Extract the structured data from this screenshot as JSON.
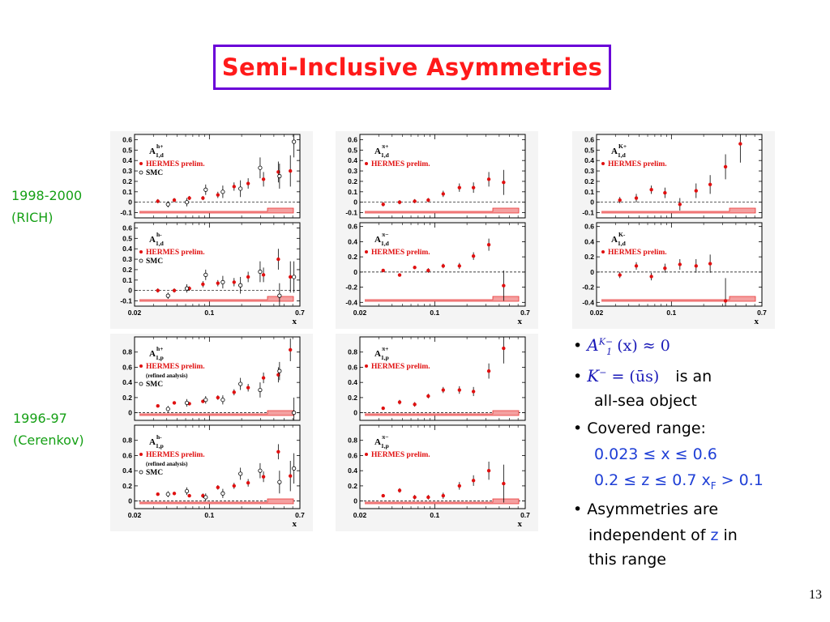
{
  "slide": {
    "title": "Semi-Inclusive Asymmetries",
    "label_1998": "1998-2000",
    "label_rich": "(RICH)",
    "label_1996": "1996-97",
    "label_cerenkov": "(Cerenkov)",
    "page_number": "13"
  },
  "bullets": {
    "b1_math": "A",
    "b1_sup": "K",
    "b1_sup2": "−",
    "b1_sub": "1",
    "b1_rest": "(x) ≈ 0",
    "b2_math": "K",
    "b2_sup": "−",
    "b2_eq": " = (ūs)",
    "b2_text": "is an",
    "b2_text2": "all-sea object",
    "b3_text": "Covered range:",
    "b3_r1": "0.023 ≤ x ≤ 0.6",
    "b3_r2": "0.2 ≤ z ≤ 0.7 x",
    "b3_r2_sub": "F",
    "b3_r2_end": " > 0.1",
    "b4_l1": "Asymmetries are",
    "b4_l2a": "independent of ",
    "b4_l2b": "z",
    "b4_l2c": " in",
    "b4_l3": "this range"
  },
  "colors": {
    "hermes": "#e01010",
    "syst": "#e83030",
    "title_border": "#6a00d8",
    "green": "#16a016"
  },
  "chart_data": [
    {
      "id": "A1d-hplus",
      "type": "scatter",
      "label_main": "A",
      "label_sup": "h+",
      "label_sub": "1,d",
      "ylim": [
        -0.15,
        0.65
      ],
      "yticks": [
        -0.1,
        0,
        0.1,
        0.2,
        0.3,
        0.4,
        0.5,
        0.6
      ],
      "xlim": [
        0.02,
        0.7
      ],
      "xticks": [
        "0.02",
        "0.1",
        "0.7"
      ],
      "xlabel": "x",
      "legend": [
        "HERMES prelim.",
        "SMC"
      ],
      "legend_sub": "",
      "series": [
        {
          "name": "HERMES prelim.",
          "x": [
            0.033,
            0.047,
            0.065,
            0.087,
            0.12,
            0.17,
            0.23,
            0.32,
            0.44,
            0.57
          ],
          "y": [
            0.01,
            0.02,
            0.04,
            0.04,
            0.07,
            0.15,
            0.18,
            0.22,
            0.29,
            0.3
          ],
          "err": [
            0.02,
            0.02,
            0.02,
            0.02,
            0.03,
            0.04,
            0.05,
            0.07,
            0.1,
            0.15
          ]
        },
        {
          "name": "SMC",
          "x": [
            0.04,
            0.06,
            0.09,
            0.13,
            0.19,
            0.29,
            0.44,
            0.6
          ],
          "y": [
            -0.02,
            0.0,
            0.12,
            0.1,
            0.13,
            0.33,
            0.25,
            0.58
          ],
          "err": [
            0.03,
            0.04,
            0.05,
            0.06,
            0.08,
            0.1,
            0.12,
            0.15
          ]
        }
      ]
    },
    {
      "id": "A1d-hminus",
      "type": "scatter",
      "label_main": "A",
      "label_sup": "h-",
      "label_sub": "1,d",
      "ylim": [
        -0.15,
        0.65
      ],
      "yticks": [
        -0.1,
        0,
        0.1,
        0.2,
        0.3,
        0.4,
        0.5,
        0.6
      ],
      "xlim": [
        0.02,
        0.7
      ],
      "xticks": [
        "0.02",
        "0.1",
        "0.7"
      ],
      "xlabel": "x",
      "legend": [
        "HERMES prelim.",
        "SMC"
      ],
      "legend_sub": "",
      "series": [
        {
          "name": "HERMES prelim.",
          "x": [
            0.033,
            0.047,
            0.065,
            0.087,
            0.12,
            0.17,
            0.23,
            0.32,
            0.44,
            0.57
          ],
          "y": [
            0.0,
            0.0,
            0.02,
            0.06,
            0.07,
            0.08,
            0.13,
            0.15,
            0.3,
            0.13
          ],
          "err": [
            0.02,
            0.02,
            0.02,
            0.03,
            0.03,
            0.04,
            0.05,
            0.07,
            0.1,
            0.15
          ]
        },
        {
          "name": "SMC",
          "x": [
            0.04,
            0.06,
            0.09,
            0.13,
            0.19,
            0.29,
            0.44,
            0.6
          ],
          "y": [
            -0.05,
            0.02,
            0.15,
            0.08,
            0.05,
            0.18,
            -0.05,
            0.13
          ],
          "err": [
            0.03,
            0.04,
            0.05,
            0.06,
            0.08,
            0.1,
            0.12,
            0.15
          ]
        }
      ]
    },
    {
      "id": "A1d-piplus",
      "type": "scatter",
      "label_main": "A",
      "label_sup": "π+",
      "label_sub": "1,d",
      "ylim": [
        -0.15,
        0.65
      ],
      "yticks": [
        -0.1,
        0,
        0.1,
        0.2,
        0.3,
        0.4,
        0.5,
        0.6
      ],
      "xlim": [
        0.02,
        0.7
      ],
      "xticks": [
        "0.02",
        "0.1",
        "0.7"
      ],
      "xlabel": "x",
      "legend": [
        "HERMES prelim."
      ],
      "legend_sub": "",
      "series": [
        {
          "name": "HERMES prelim.",
          "x": [
            0.033,
            0.047,
            0.065,
            0.087,
            0.12,
            0.17,
            0.23,
            0.32,
            0.44
          ],
          "y": [
            -0.02,
            0.0,
            0.01,
            0.02,
            0.08,
            0.14,
            0.14,
            0.22,
            0.19
          ],
          "err": [
            0.02,
            0.02,
            0.02,
            0.02,
            0.03,
            0.04,
            0.05,
            0.07,
            0.12
          ]
        }
      ]
    },
    {
      "id": "A1d-piminus",
      "type": "scatter",
      "label_main": "A",
      "label_sup": "π−",
      "label_sub": "1,d",
      "ylim": [
        -0.45,
        0.65
      ],
      "yticks": [
        -0.4,
        -0.2,
        0,
        0.2,
        0.4,
        0.6
      ],
      "xlim": [
        0.02,
        0.7
      ],
      "xticks": [
        "0.02",
        "0.1",
        "0.7"
      ],
      "xlabel": "x",
      "legend": [
        "HERMES prelim."
      ],
      "legend_sub": "",
      "series": [
        {
          "name": "HERMES prelim.",
          "x": [
            0.033,
            0.047,
            0.065,
            0.087,
            0.12,
            0.17,
            0.23,
            0.32,
            0.44
          ],
          "y": [
            0.02,
            -0.04,
            0.06,
            0.02,
            0.08,
            0.08,
            0.21,
            0.36,
            -0.18
          ],
          "err": [
            0.02,
            0.02,
            0.02,
            0.03,
            0.03,
            0.04,
            0.05,
            0.08,
            0.2
          ]
        }
      ]
    },
    {
      "id": "A1d-Kplus",
      "type": "scatter",
      "label_main": "A",
      "label_sup": "K+",
      "label_sub": "1,d",
      "ylim": [
        -0.15,
        0.65
      ],
      "yticks": [
        -0.1,
        0,
        0.1,
        0.2,
        0.3,
        0.4,
        0.5,
        0.6
      ],
      "xlim": [
        0.02,
        0.7
      ],
      "xticks": [
        "0.02",
        "0.1",
        "0.7"
      ],
      "xlabel": "x",
      "legend": [
        "HERMES prelim."
      ],
      "legend_sub": "",
      "series": [
        {
          "name": "HERMES prelim.",
          "x": [
            0.033,
            0.047,
            0.065,
            0.087,
            0.12,
            0.17,
            0.23,
            0.32,
            0.44
          ],
          "y": [
            0.02,
            0.04,
            0.12,
            0.09,
            -0.02,
            0.11,
            0.17,
            0.34,
            0.56
          ],
          "err": [
            0.03,
            0.04,
            0.04,
            0.05,
            0.06,
            0.07,
            0.09,
            0.12,
            0.18
          ]
        }
      ]
    },
    {
      "id": "A1d-Kminus",
      "type": "scatter",
      "label_main": "A",
      "label_sup": "K-",
      "label_sub": "1,d",
      "ylim": [
        -0.45,
        0.65
      ],
      "yticks": [
        -0.4,
        -0.2,
        0,
        0.2,
        0.4,
        0.6
      ],
      "xlim": [
        0.02,
        0.7
      ],
      "xticks": [
        "0.02",
        "0.1",
        "0.7"
      ],
      "xlabel": "x",
      "legend": [
        "HERMES prelim."
      ],
      "legend_sub": "",
      "series": [
        {
          "name": "HERMES prelim.",
          "x": [
            0.033,
            0.047,
            0.065,
            0.087,
            0.12,
            0.17,
            0.23,
            0.32
          ],
          "y": [
            -0.04,
            0.08,
            -0.06,
            0.05,
            0.1,
            0.08,
            0.11,
            -0.38
          ],
          "err": [
            0.04,
            0.05,
            0.05,
            0.06,
            0.07,
            0.09,
            0.12,
            0.3
          ]
        }
      ]
    },
    {
      "id": "A1p-hplus",
      "type": "scatter",
      "label_main": "A",
      "label_sup": "h+",
      "label_sub": "1,p",
      "ylim": [
        -0.1,
        1.0
      ],
      "yticks": [
        0,
        0.2,
        0.4,
        0.6,
        0.8
      ],
      "xlim": [
        0.02,
        0.7
      ],
      "xticks": [
        "0.02",
        "0.1",
        "0.7"
      ],
      "xlabel": "x",
      "legend": [
        "HERMES prelim.",
        "SMC"
      ],
      "legend_sub": "(refined analysis)",
      "series": [
        {
          "name": "HERMES prelim.",
          "x": [
            0.033,
            0.047,
            0.065,
            0.087,
            0.12,
            0.17,
            0.23,
            0.32,
            0.44,
            0.57
          ],
          "y": [
            0.09,
            0.13,
            0.12,
            0.15,
            0.2,
            0.27,
            0.33,
            0.46,
            0.5,
            0.83
          ],
          "err": [
            0.02,
            0.02,
            0.02,
            0.02,
            0.03,
            0.04,
            0.05,
            0.07,
            0.1,
            0.15
          ]
        },
        {
          "name": "SMC",
          "x": [
            0.04,
            0.06,
            0.09,
            0.13,
            0.19,
            0.29,
            0.44,
            0.6
          ],
          "y": [
            0.05,
            0.13,
            0.17,
            0.17,
            0.38,
            0.3,
            0.55,
            0.0
          ],
          "err": [
            0.04,
            0.05,
            0.05,
            0.06,
            0.08,
            0.1,
            0.12,
            0.2
          ]
        }
      ]
    },
    {
      "id": "A1p-hminus",
      "type": "scatter",
      "label_main": "A",
      "label_sup": "h-",
      "label_sub": "1,p",
      "ylim": [
        -0.1,
        1.0
      ],
      "yticks": [
        0,
        0.2,
        0.4,
        0.6,
        0.8
      ],
      "xlim": [
        0.02,
        0.7
      ],
      "xticks": [
        "0.02",
        "0.1",
        "0.7"
      ],
      "xlabel": "x",
      "legend": [
        "HERMES prelim.",
        "SMC"
      ],
      "legend_sub": "(refined analysis)",
      "series": [
        {
          "name": "HERMES prelim.",
          "x": [
            0.033,
            0.047,
            0.065,
            0.087,
            0.12,
            0.17,
            0.23,
            0.32,
            0.44,
            0.57
          ],
          "y": [
            0.09,
            0.1,
            0.07,
            0.07,
            0.18,
            0.2,
            0.24,
            0.32,
            0.65,
            0.33
          ],
          "err": [
            0.02,
            0.02,
            0.02,
            0.03,
            0.03,
            0.04,
            0.05,
            0.07,
            0.1,
            0.2
          ]
        },
        {
          "name": "SMC",
          "x": [
            0.04,
            0.06,
            0.09,
            0.13,
            0.19,
            0.29,
            0.44,
            0.6
          ],
          "y": [
            0.09,
            0.13,
            0.05,
            0.1,
            0.36,
            0.4,
            0.25,
            0.43
          ],
          "err": [
            0.04,
            0.05,
            0.05,
            0.06,
            0.08,
            0.1,
            0.15,
            0.2
          ]
        }
      ]
    },
    {
      "id": "A1p-piplus",
      "type": "scatter",
      "label_main": "A",
      "label_sup": "π+",
      "label_sub": "1,p",
      "ylim": [
        -0.1,
        1.0
      ],
      "yticks": [
        0,
        0.2,
        0.4,
        0.6,
        0.8
      ],
      "xlim": [
        0.02,
        0.7
      ],
      "xticks": [
        "0.02",
        "0.1",
        "0.7"
      ],
      "xlabel": "x",
      "legend": [
        "HERMES prelim."
      ],
      "legend_sub": "",
      "series": [
        {
          "name": "HERMES prelim.",
          "x": [
            0.033,
            0.047,
            0.065,
            0.087,
            0.12,
            0.17,
            0.23,
            0.32,
            0.44
          ],
          "y": [
            0.06,
            0.14,
            0.11,
            0.22,
            0.3,
            0.3,
            0.28,
            0.55,
            0.85
          ],
          "err": [
            0.02,
            0.03,
            0.03,
            0.03,
            0.04,
            0.05,
            0.06,
            0.1,
            0.2
          ]
        }
      ]
    },
    {
      "id": "A1p-piminus",
      "type": "scatter",
      "label_main": "A",
      "label_sup": "π−",
      "label_sub": "1,p",
      "ylim": [
        -0.1,
        1.0
      ],
      "yticks": [
        0,
        0.2,
        0.4,
        0.6,
        0.8
      ],
      "xlim": [
        0.02,
        0.7
      ],
      "xticks": [
        "0.02",
        "0.1",
        "0.7"
      ],
      "xlabel": "x",
      "legend": [
        "HERMES prelim."
      ],
      "legend_sub": "",
      "series": [
        {
          "name": "HERMES prelim.",
          "x": [
            0.033,
            0.047,
            0.065,
            0.087,
            0.12,
            0.17,
            0.23,
            0.32,
            0.44
          ],
          "y": [
            0.07,
            0.14,
            0.05,
            0.05,
            0.07,
            0.2,
            0.27,
            0.4,
            0.23
          ],
          "err": [
            0.02,
            0.03,
            0.03,
            0.03,
            0.04,
            0.05,
            0.07,
            0.12,
            0.25
          ]
        }
      ]
    }
  ]
}
